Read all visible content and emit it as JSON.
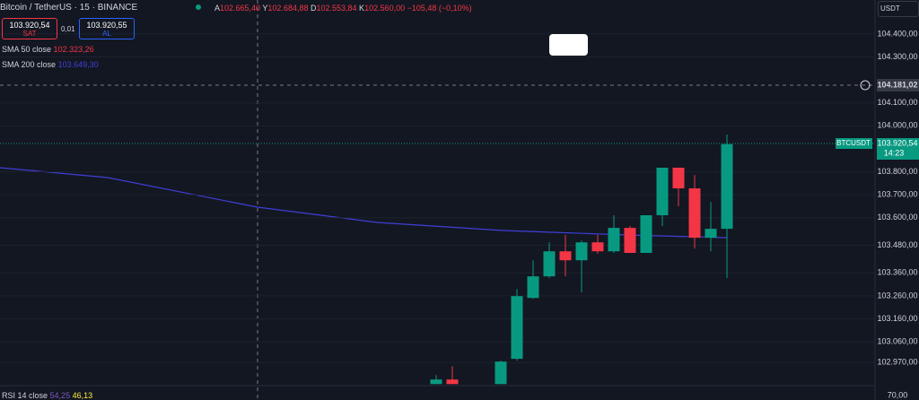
{
  "header": {
    "symbol": "Bitcoin / TetherUS · 15 · BINANCE",
    "o_label": "A",
    "o": "102.665,40",
    "h_label": "Y",
    "h": "102.684,88",
    "l_label": "D",
    "l": "102.553,84",
    "c_label": "K",
    "c": "102.560,00",
    "change": "−105,48 (−0,10%)",
    "sell_price": "103.920,54",
    "sell": "SAT",
    "spread": "0,01",
    "buy_price": "103.920,55",
    "buy": "AL",
    "sma50": "SMA 50 close",
    "sma50_value": "102.323,26",
    "sma200": "SMA 200 close",
    "sma200_value": "103.649,30",
    "rsi": "RSI 14 close",
    "rsi_a": "54,25",
    "rsi_b": "46,13",
    "currency": "USDT",
    "cursor_price": "104.181,02",
    "ticker": "BTCUSDT",
    "last_price": "103.920,54",
    "countdown": "14:23",
    "rsi_tick": "70,00"
  },
  "chart_data": {
    "type": "candlestick",
    "up_color": "#089981",
    "down_color": "#f23645",
    "open": [
      102876,
      102896,
      null,
      null,
      102876,
      102986,
      103251,
      103345,
      103454,
      103415,
      103493,
      103454,
      103556,
      103447,
      103611,
      103818,
      103728,
      103513,
      103552
    ],
    "high": [
      102915,
      102954,
      null,
      null,
      102978,
      103290,
      103415,
      103493,
      103525,
      103501,
      103525,
      103611,
      103564,
      103611,
      103818,
      103818,
      103786,
      103669,
      103962
    ],
    "low": [
      102876,
      102876,
      null,
      null,
      102876,
      102978,
      103247,
      103337,
      103345,
      103275,
      103443,
      103447,
      103447,
      103447,
      103564,
      103650,
      103466,
      103454,
      103337
    ],
    "close": [
      102896,
      102876,
      null,
      null,
      102974,
      103259,
      103345,
      103454,
      103415,
      103493,
      103454,
      103556,
      103447,
      103611,
      103818,
      103728,
      103513,
      103552,
      103920.54
    ],
    "ylim": [
      102877,
      104548
    ],
    "yticks": [
      {
        "value": 104400,
        "label": "104.400,00"
      },
      {
        "value": 104300,
        "label": "104.300,00"
      },
      {
        "value": 104100,
        "label": "104.100,00"
      },
      {
        "value": 104000,
        "label": "104.000,00"
      },
      {
        "value": 103800,
        "label": "103.800,00"
      },
      {
        "value": 103700,
        "label": "103.700,00"
      },
      {
        "value": 103600,
        "label": "103.600,00"
      },
      {
        "value": 103480,
        "label": "103.480,00"
      },
      {
        "value": 103360,
        "label": "103.360,00"
      },
      {
        "value": 103260,
        "label": "103.260,00"
      },
      {
        "value": 103160,
        "label": "103.160,00"
      },
      {
        "value": 103060,
        "label": "103.060,00"
      },
      {
        "value": 102970,
        "label": "102.970,00"
      }
    ],
    "grid": true
  }
}
